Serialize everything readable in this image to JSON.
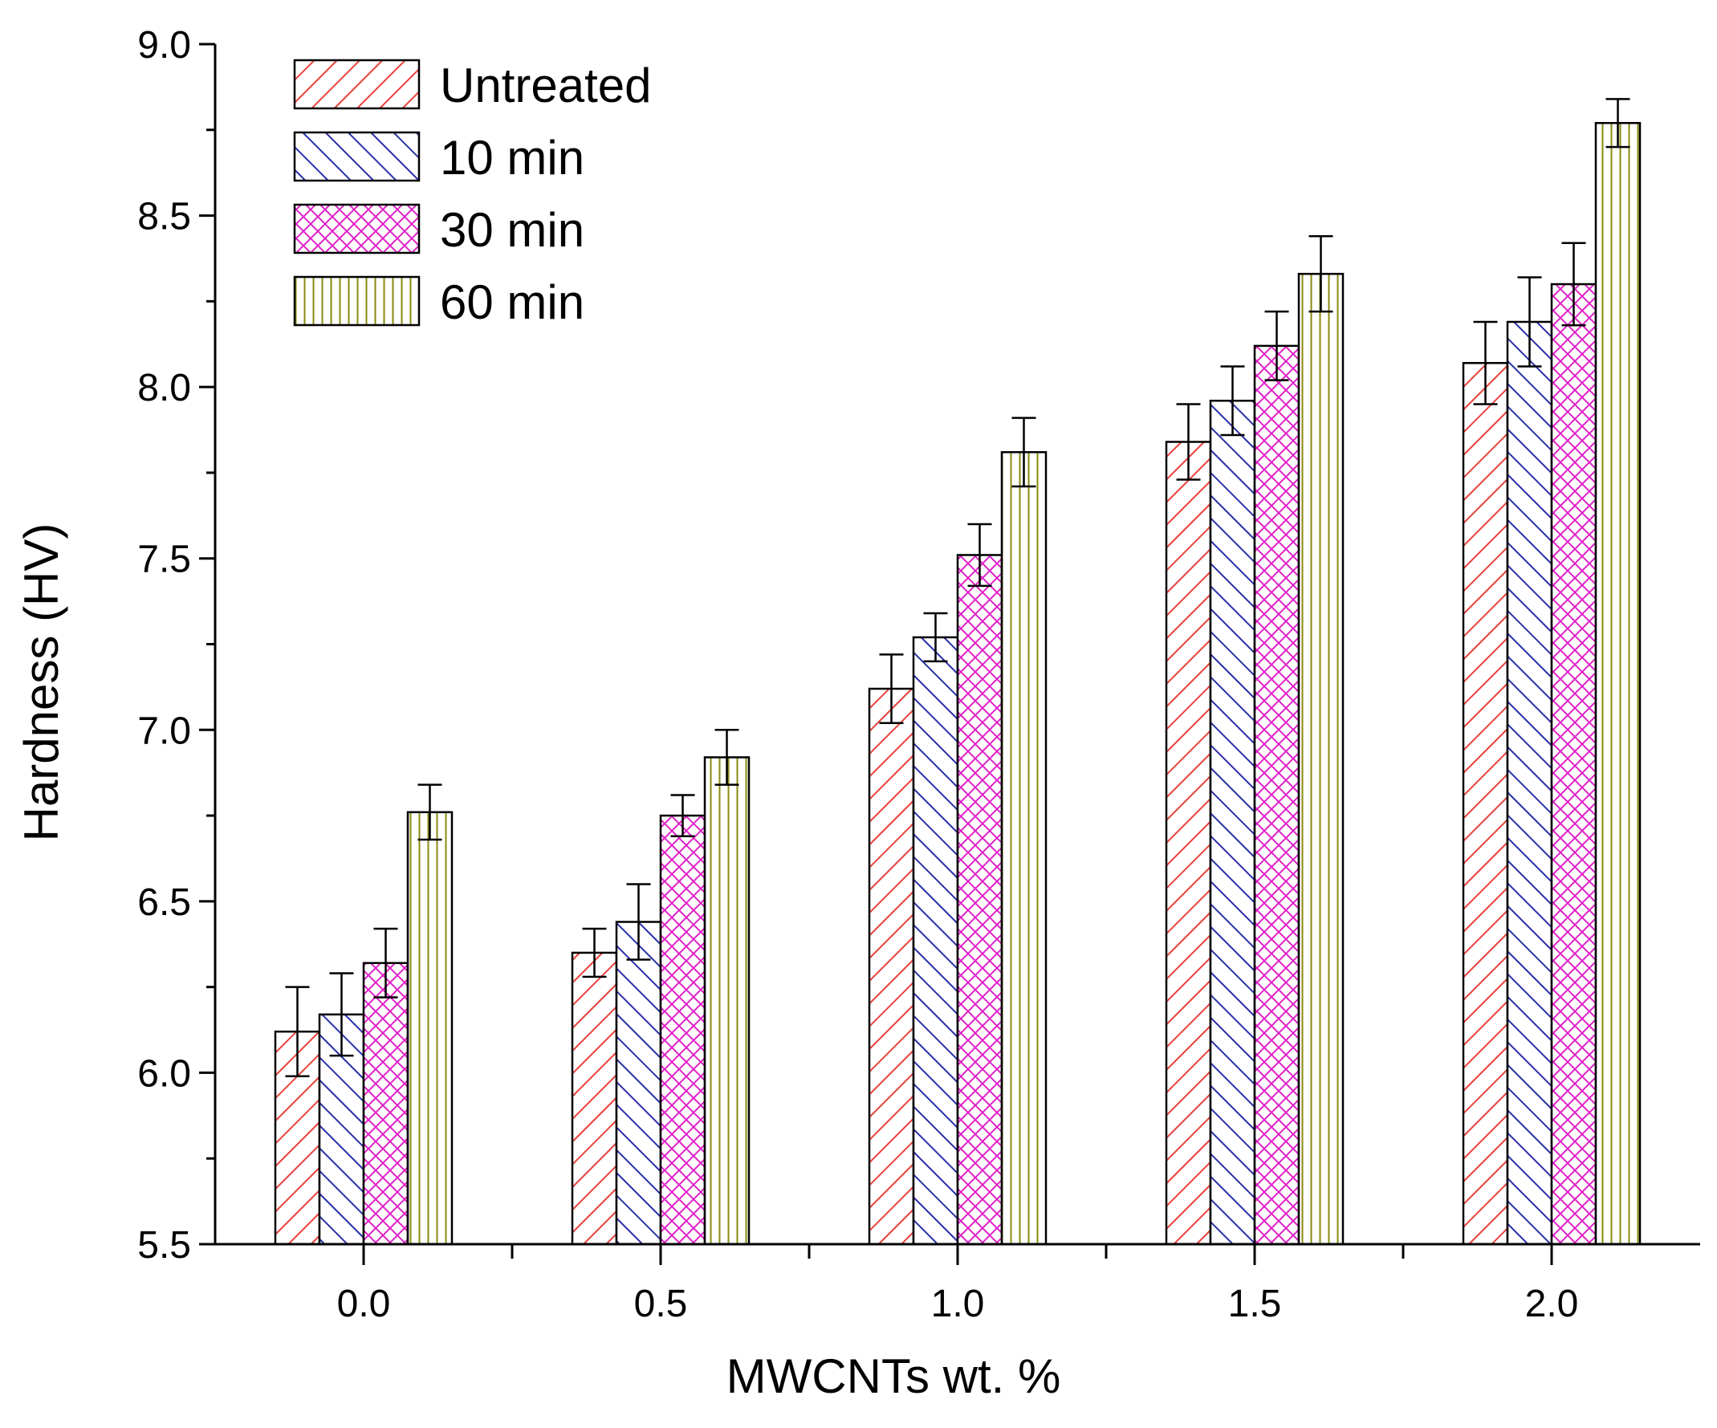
{
  "chart_data": {
    "type": "bar",
    "xlabel": "MWCNTs wt. %",
    "ylabel": "Hardness (HV)",
    "categories": [
      "0.0",
      "0.5",
      "1.0",
      "1.5",
      "2.0"
    ],
    "ylim": [
      5.5,
      9.0
    ],
    "yticks": [
      "5.5",
      "6.0",
      "6.5",
      "7.0",
      "7.5",
      "8.0",
      "8.5",
      "9.0"
    ],
    "legend_position": "top-left",
    "grid": false,
    "error_bars": true,
    "series": [
      {
        "name": "Untreated",
        "color": "#e8413c",
        "pattern": "diagonal-up",
        "values": [
          6.12,
          6.35,
          7.12,
          7.84,
          8.07
        ],
        "errors": [
          0.13,
          0.07,
          0.1,
          0.11,
          0.12
        ]
      },
      {
        "name": "10 min",
        "color": "#2b2fa8",
        "pattern": "diagonal-down",
        "values": [
          6.17,
          6.44,
          7.27,
          7.96,
          8.19
        ],
        "errors": [
          0.12,
          0.11,
          0.07,
          0.1,
          0.13
        ]
      },
      {
        "name": "30 min",
        "color": "#e020c8",
        "pattern": "crosshatch",
        "values": [
          6.32,
          6.75,
          7.51,
          8.12,
          8.3
        ],
        "errors": [
          0.1,
          0.06,
          0.09,
          0.1,
          0.12
        ]
      },
      {
        "name": "60 min",
        "color": "#8a8a10",
        "pattern": "vertical",
        "values": [
          6.76,
          6.92,
          7.81,
          8.33,
          8.77
        ],
        "errors": [
          0.08,
          0.08,
          0.1,
          0.11,
          0.07
        ]
      }
    ]
  }
}
